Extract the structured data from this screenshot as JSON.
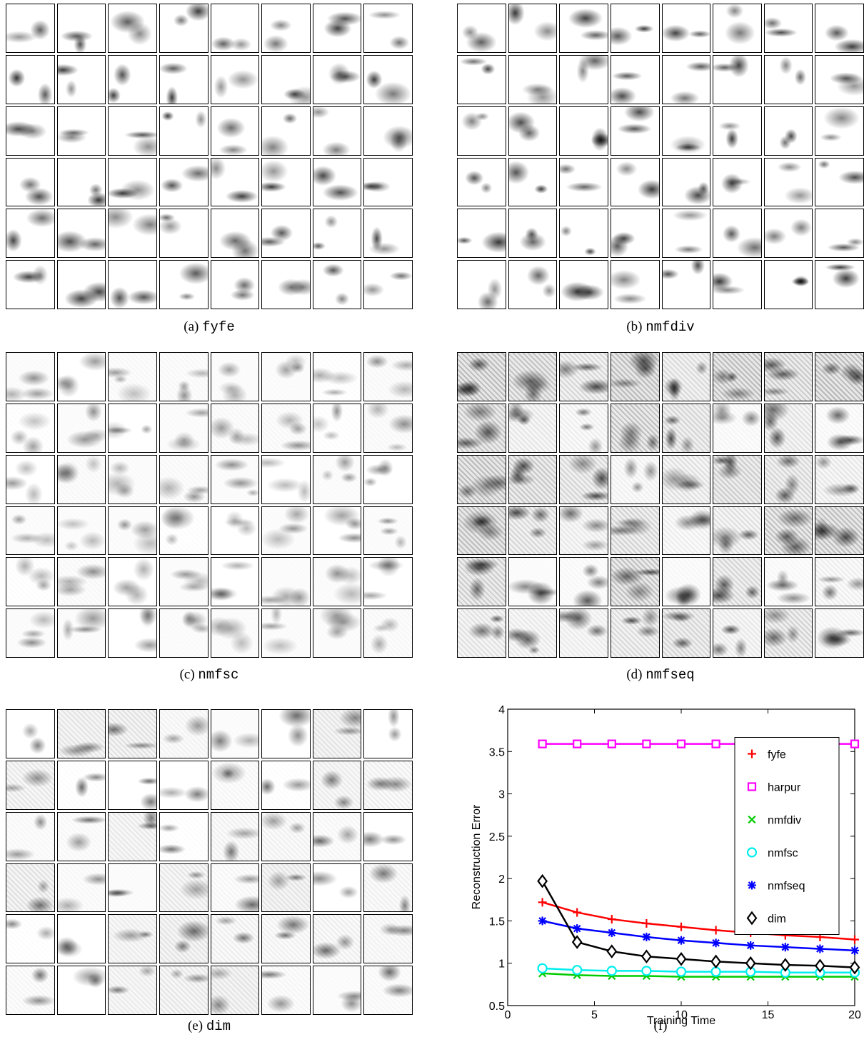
{
  "panels": [
    {
      "label": "(a)",
      "name": "fyfe"
    },
    {
      "label": "(b)",
      "name": "nmfdiv"
    },
    {
      "label": "(c)",
      "name": "nmfsc"
    },
    {
      "label": "(d)",
      "name": "nmfseq"
    },
    {
      "label": "(e)",
      "name": "dim"
    },
    {
      "label": "(f)"
    }
  ],
  "chart_data": {
    "type": "line",
    "xlabel": "Training Time",
    "ylabel": "Reconstruction Error",
    "x": [
      2,
      4,
      6,
      8,
      10,
      12,
      14,
      16,
      18,
      20
    ],
    "xlim": [
      0,
      20
    ],
    "xticks": [
      0,
      5,
      10,
      15,
      20
    ],
    "ylim": [
      0.5,
      4
    ],
    "yticks": [
      0.5,
      1,
      1.5,
      2,
      2.5,
      3,
      3.5,
      4
    ],
    "legend": "right",
    "series": [
      {
        "name": "fyfe",
        "color": "#ff0000",
        "marker": "plus",
        "values": [
          1.72,
          1.6,
          1.52,
          1.47,
          1.43,
          1.39,
          1.36,
          1.33,
          1.31,
          1.28
        ]
      },
      {
        "name": "harpur",
        "color": "#ff00ff",
        "marker": "square",
        "values": [
          3.59,
          3.59,
          3.59,
          3.59,
          3.59,
          3.59,
          3.59,
          3.59,
          3.59,
          3.59
        ]
      },
      {
        "name": "nmfdiv",
        "color": "#00cc00",
        "marker": "x",
        "values": [
          0.88,
          0.86,
          0.85,
          0.85,
          0.84,
          0.84,
          0.84,
          0.84,
          0.84,
          0.84
        ]
      },
      {
        "name": "nmfsc",
        "color": "#00eeee",
        "marker": "circle",
        "values": [
          0.94,
          0.92,
          0.91,
          0.91,
          0.9,
          0.9,
          0.9,
          0.89,
          0.89,
          0.89
        ]
      },
      {
        "name": "nmfseq",
        "color": "#0000ff",
        "marker": "asterisk",
        "values": [
          1.5,
          1.41,
          1.36,
          1.31,
          1.27,
          1.24,
          1.21,
          1.19,
          1.17,
          1.15
        ]
      },
      {
        "name": "dim",
        "color": "#000000",
        "marker": "diamond",
        "values": [
          1.97,
          1.25,
          1.14,
          1.08,
          1.05,
          1.02,
          1.0,
          0.98,
          0.97,
          0.95
        ]
      }
    ]
  }
}
